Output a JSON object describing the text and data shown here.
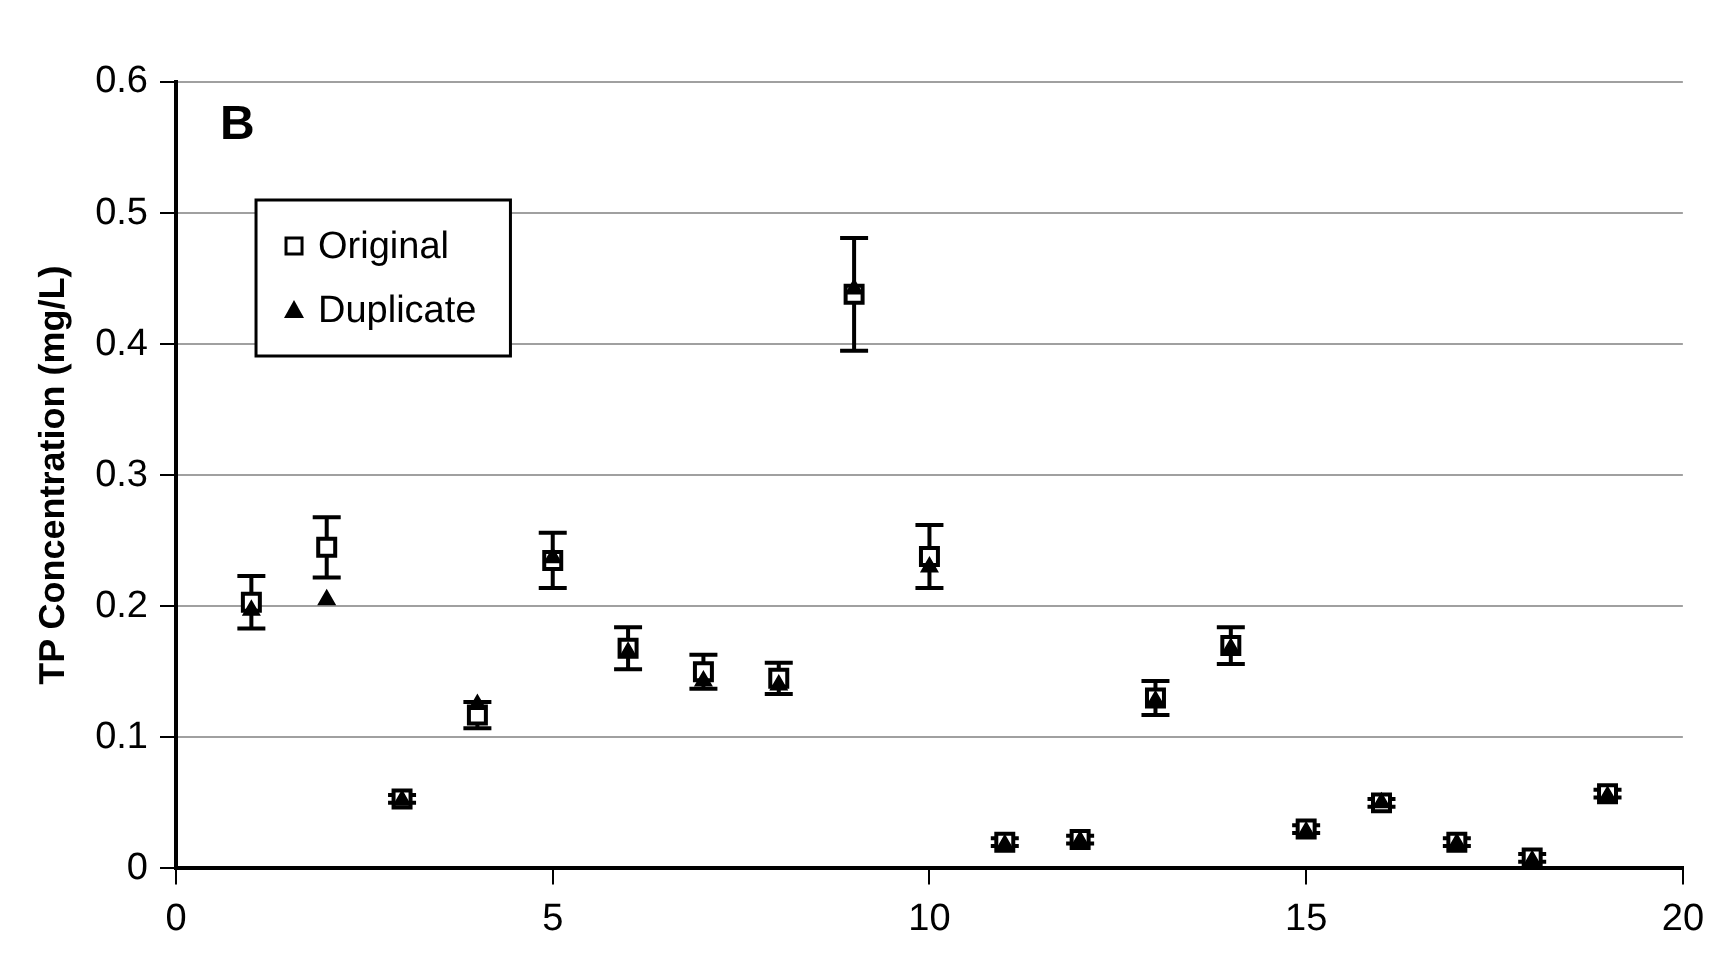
{
  "chart_data": {
    "type": "scatter",
    "ylabel": "TP Concentration (mg/L)",
    "annotations": [
      "B"
    ],
    "x": [
      1,
      2,
      3,
      4,
      5,
      6,
      7,
      8,
      9,
      10,
      11,
      12,
      13,
      14,
      15,
      16,
      17,
      18,
      19
    ],
    "series": [
      {
        "name": "Original",
        "color": "#000000",
        "marker": "square",
        "values": [
          0.203,
          0.245,
          0.053,
          0.117,
          0.235,
          0.168,
          0.15,
          0.145,
          0.438,
          0.238,
          0.02,
          0.022,
          0.13,
          0.17,
          0.03,
          0.05,
          0.02,
          0.008,
          0.057
        ],
        "errors": [
          0.02,
          0.023,
          0.003,
          0.01,
          0.021,
          0.016,
          0.013,
          0.012,
          0.043,
          0.024,
          0.003,
          0.003,
          0.013,
          0.014,
          0.003,
          0.003,
          0.003,
          0.003,
          0.003
        ]
      },
      {
        "name": "Duplicate",
        "color": "#000000",
        "marker": "triangle",
        "values": [
          0.197,
          0.205,
          0.052,
          0.125,
          0.237,
          0.165,
          0.143,
          0.14,
          0.442,
          0.23,
          0.018,
          0.021,
          0.128,
          0.168,
          0.028,
          0.05,
          0.019,
          0.006,
          0.055
        ]
      }
    ],
    "xlim": [
      0,
      20
    ],
    "xticks": [
      0,
      5,
      10,
      15,
      20
    ],
    "ylim": [
      0,
      0.6
    ],
    "yticks": [
      0,
      0.1,
      0.2,
      0.3,
      0.4,
      0.5,
      0.6
    ],
    "grid": "y",
    "legend": "top left"
  }
}
